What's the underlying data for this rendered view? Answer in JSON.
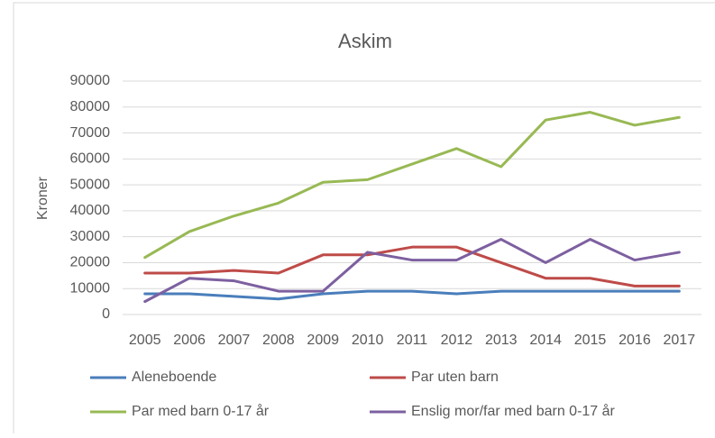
{
  "chart_data": {
    "type": "line",
    "title": "Askim",
    "y_label": "Kroner",
    "categories": [
      "2005",
      "2006",
      "2007",
      "2008",
      "2009",
      "2010",
      "2011",
      "2012",
      "2013",
      "2014",
      "2015",
      "2016",
      "2017"
    ],
    "series": [
      {
        "name": "Aleneboende",
        "color": "#4a7ebb",
        "values": [
          8000,
          8000,
          7000,
          6000,
          8000,
          9000,
          9000,
          8000,
          9000,
          9000,
          9000,
          9000,
          9000
        ]
      },
      {
        "name": "Par uten barn",
        "color": "#be4b48",
        "values": [
          16000,
          16000,
          17000,
          16000,
          23000,
          23000,
          26000,
          26000,
          20000,
          14000,
          14000,
          11000,
          11000
        ]
      },
      {
        "name": "Par med barn 0-17 år",
        "color": "#98b954",
        "values": [
          22000,
          32000,
          38000,
          43000,
          51000,
          52000,
          58000,
          64000,
          57000,
          75000,
          78000,
          73000,
          76000
        ]
      },
      {
        "name": "Enslig mor/far med barn 0-17 år",
        "color": "#7d60a0",
        "values": [
          5000,
          14000,
          13000,
          9000,
          9000,
          24000,
          21000,
          21000,
          29000,
          20000,
          29000,
          21000,
          24000
        ]
      }
    ],
    "ylim": [
      0,
      90000
    ],
    "yticks": [
      0,
      10000,
      20000,
      30000,
      40000,
      50000,
      60000,
      70000,
      80000,
      90000
    ],
    "grid": true,
    "legend": "bottom"
  }
}
